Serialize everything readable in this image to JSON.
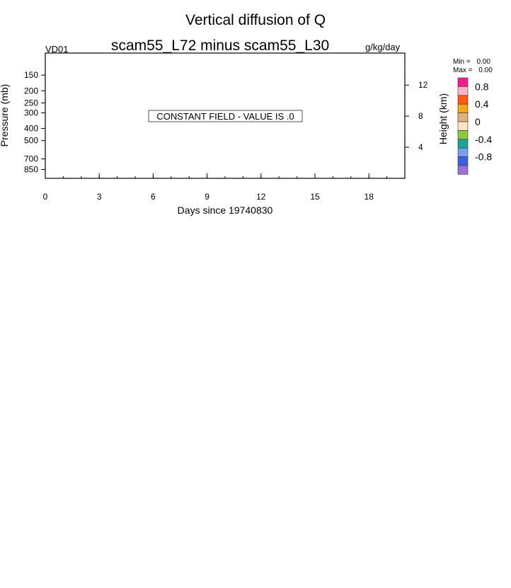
{
  "chart_data": {
    "type": "heatmap",
    "title": "Vertical diffusion of Q",
    "subtitle": "scam55_L72 minus scam55_L30",
    "left_string": "VD01",
    "right_string": "g/kg/day",
    "xlabel": "Days since 19740830",
    "ylabel": "Pressure (mb)",
    "y2label": "Height (km)",
    "xlim": [
      0,
      20
    ],
    "x_ticks": [
      0,
      3,
      6,
      9,
      12,
      15,
      18
    ],
    "y_ticks": [
      150,
      200,
      250,
      300,
      400,
      500,
      700,
      850
    ],
    "y2_ticks": [
      12,
      8,
      4
    ],
    "ylim": [
      1000,
      100
    ],
    "y_scale": "log",
    "constant_field_message": "CONSTANT FIELD - VALUE IS .0",
    "stats": {
      "min_label": "Min =",
      "min_value": "0.00",
      "max_label": "Max =",
      "max_value": "0.00"
    },
    "colorbar": {
      "labels": [
        "0.8",
        "0.4",
        "0",
        "-0.4",
        "-0.8"
      ],
      "colors": [
        "#f01e8c",
        "#fbb4c3",
        "#fa5a14",
        "#f8a51e",
        "#e2b07a",
        "#fbe7c4",
        "#8dc63f",
        "#1aa693",
        "#7a9ef0",
        "#3c62e3",
        "#9b72d8"
      ]
    },
    "values": []
  }
}
